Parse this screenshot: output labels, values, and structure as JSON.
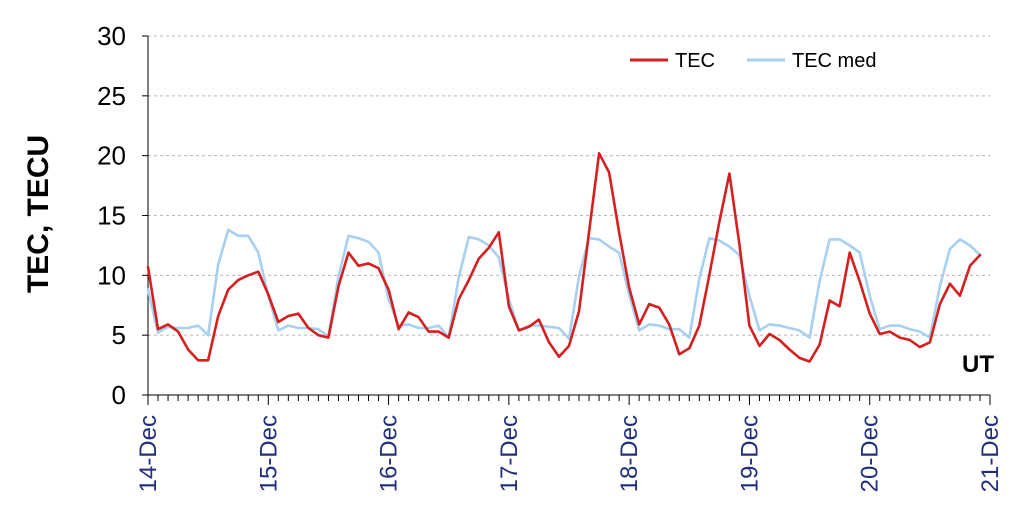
{
  "chart_data": {
    "type": "line",
    "ylabel": "TEC, TECU",
    "annotation": "UT",
    "ylim": [
      0,
      30
    ],
    "yticks": [
      0,
      5,
      10,
      15,
      20,
      25,
      30
    ],
    "xlabels": [
      "14-Dec",
      "15-Dec",
      "16-Dec",
      "17-Dec",
      "18-Dec",
      "19-Dec",
      "20-Dec",
      "21-Dec"
    ],
    "samples_per_day": 12,
    "grid": true,
    "legend_position": "top-right",
    "series": [
      {
        "name": "TEC",
        "color": "#d42020",
        "values": [
          10.7,
          5.5,
          5.9,
          5.3,
          3.8,
          2.9,
          2.9,
          6.6,
          8.8,
          9.6,
          10.0,
          10.3,
          8.4,
          6.1,
          6.6,
          6.8,
          5.6,
          5.0,
          4.8,
          9.1,
          11.9,
          10.8,
          11.0,
          10.6,
          8.8,
          5.5,
          6.9,
          6.5,
          5.3,
          5.3,
          4.8,
          8.0,
          9.6,
          11.4,
          12.3,
          13.6,
          7.4,
          5.4,
          5.7,
          6.3,
          4.4,
          3.2,
          4.1,
          7.0,
          13.6,
          20.2,
          18.6,
          13.6,
          9.0,
          5.9,
          7.6,
          7.3,
          5.9,
          3.4,
          3.9,
          5.8,
          10.0,
          14.5,
          18.5,
          12.6,
          5.8,
          4.1,
          5.1,
          4.6,
          3.8,
          3.1,
          2.8,
          4.2,
          7.9,
          7.4,
          11.9,
          9.5,
          6.8,
          5.1,
          5.3,
          4.8,
          4.6,
          4.0,
          4.4,
          7.6,
          9.3,
          8.3,
          10.8,
          11.7
        ]
      },
      {
        "name": "TEC med",
        "color": "#a8d0f0",
        "values": [
          8.8,
          5.2,
          5.7,
          5.6,
          5.6,
          5.8,
          5.0,
          10.9,
          13.8,
          13.3,
          13.3,
          11.9,
          8.3,
          5.4,
          5.8,
          5.6,
          5.6,
          5.5,
          4.9,
          9.9,
          13.3,
          13.1,
          12.8,
          11.9,
          8.0,
          5.8,
          5.9,
          5.6,
          5.6,
          5.8,
          4.8,
          9.8,
          13.2,
          13.0,
          12.5,
          11.5,
          8.0,
          5.4,
          5.8,
          5.8,
          5.7,
          5.6,
          4.7,
          9.9,
          13.1,
          13.0,
          12.4,
          11.9,
          8.4,
          5.4,
          5.9,
          5.8,
          5.5,
          5.5,
          4.8,
          9.7,
          13.1,
          12.9,
          12.4,
          11.7,
          8.3,
          5.4,
          5.9,
          5.8,
          5.6,
          5.4,
          4.8,
          9.5,
          13.0,
          13.0,
          12.5,
          11.9,
          8.3,
          5.5,
          5.8,
          5.8,
          5.5,
          5.3,
          4.8,
          9.1,
          12.2,
          13.0,
          12.5,
          11.7
        ]
      }
    ]
  }
}
